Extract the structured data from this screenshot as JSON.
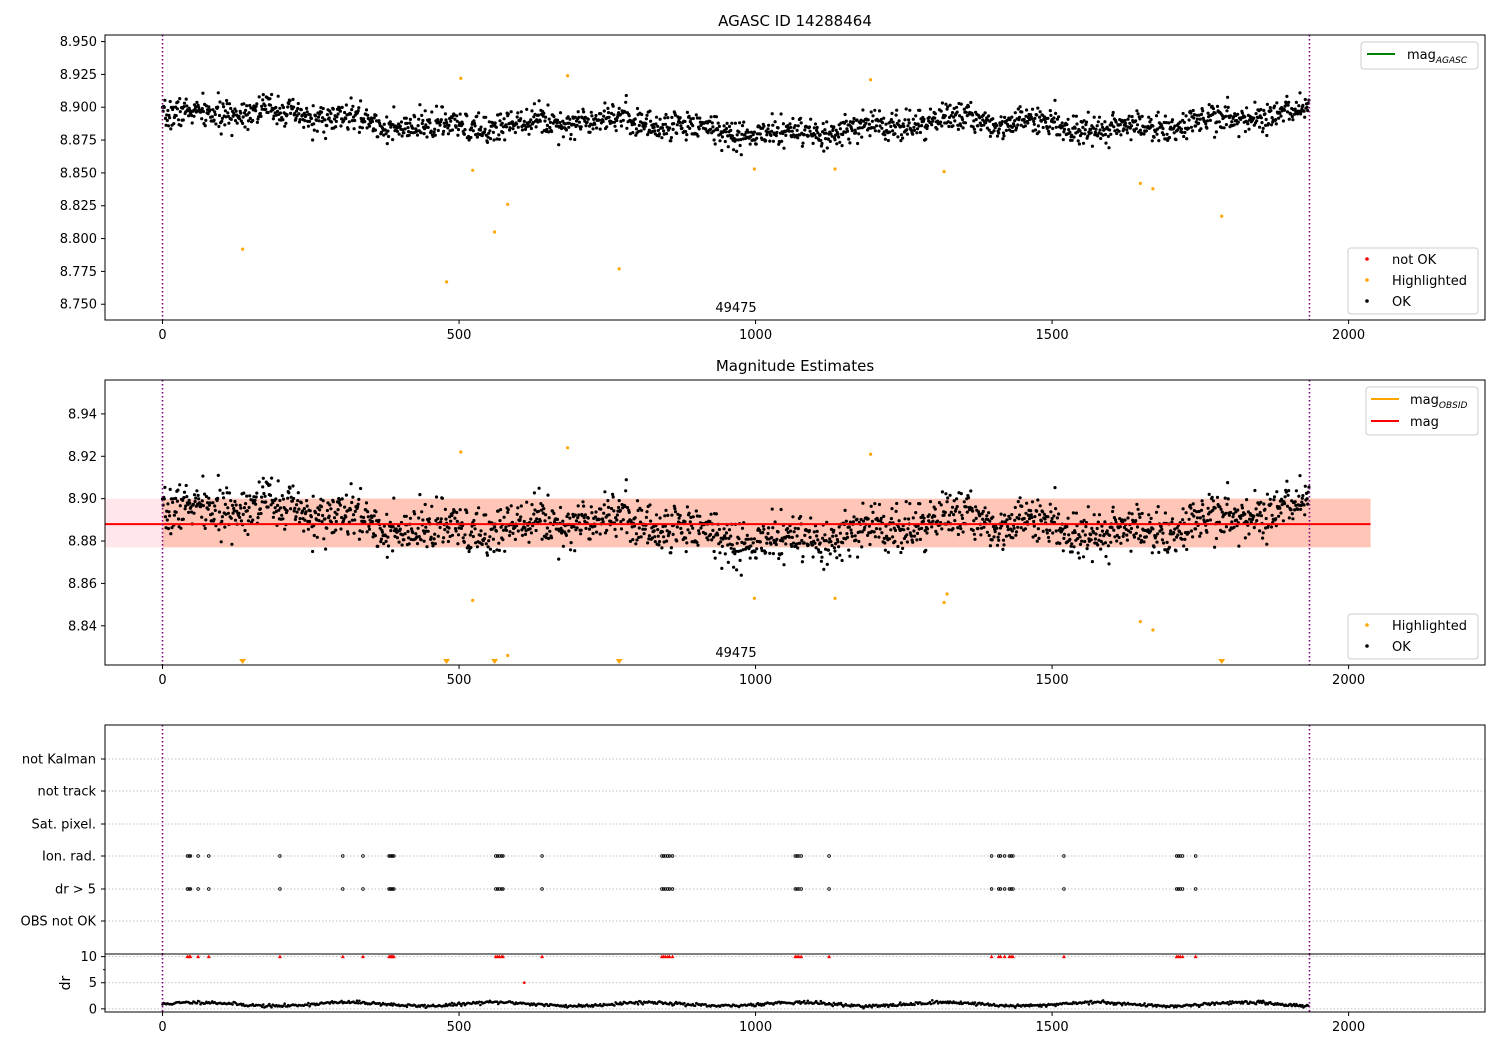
{
  "figure": {
    "panel1_title": "AGASC ID 14288464",
    "panel2_title": "Magnitude Estimates",
    "obsid_label": "49475",
    "dr_ylabel": "dr"
  },
  "colors": {
    "ok": "#000000",
    "not_ok": "#ff0000",
    "highlighted": "#ffa500",
    "mag_agasc": "#008000",
    "mag_obsid": "#ffa500",
    "mag": "#ff0000",
    "band_outer": "#ffc0cb",
    "band_inner": "#ffa07a",
    "obsid_boundary": "#800080",
    "grid": "#b0b0b0"
  },
  "chart_data": [
    {
      "id": "agasc",
      "type": "scatter",
      "title": "AGASC ID 14288464",
      "xlim": [
        -97,
        2230
      ],
      "ylim": [
        8.738,
        8.955
      ],
      "xticks": [
        0,
        500,
        1000,
        1500,
        2000
      ],
      "yticks": [
        8.75,
        8.775,
        8.8,
        8.825,
        8.85,
        8.875,
        8.9,
        8.925,
        8.95
      ],
      "ytick_decimals": 3,
      "obsid_boundaries": [
        0,
        1934
      ],
      "obsid_annotation": {
        "x": 967,
        "text": "49475"
      },
      "ok_points": {
        "n": 1934,
        "mean": 8.888,
        "scatter": 0.0085,
        "seed": 7
      },
      "highlighted_points": [
        [
          135,
          8.792
        ],
        [
          479,
          8.767
        ],
        [
          503,
          8.922
        ],
        [
          523,
          8.852
        ],
        [
          560,
          8.805
        ],
        [
          582,
          8.826
        ],
        [
          683,
          8.924
        ],
        [
          770,
          8.777
        ],
        [
          998,
          8.853
        ],
        [
          1134,
          8.853
        ],
        [
          1194,
          8.921
        ],
        [
          1318,
          8.851
        ],
        [
          1649,
          8.842
        ],
        [
          1670,
          8.838
        ],
        [
          1786,
          8.817
        ]
      ],
      "legend_lines": [
        {
          "label": "mag",
          "sub": "AGASC",
          "color": "#008000"
        }
      ],
      "legend_markers": [
        {
          "label": "not OK",
          "color": "#ff0000"
        },
        {
          "label": "Highlighted",
          "color": "#ffa500"
        },
        {
          "label": "OK",
          "color": "#000000"
        }
      ]
    },
    {
      "id": "estimates",
      "type": "scatter",
      "title": "Magnitude Estimates",
      "xlim": [
        -97,
        2230
      ],
      "ylim": [
        8.8215,
        8.956
      ],
      "xticks": [
        0,
        500,
        1000,
        1500,
        2000
      ],
      "yticks": [
        8.84,
        8.86,
        8.88,
        8.9,
        8.92,
        8.94
      ],
      "ytick_decimals": 2,
      "obsid_boundaries": [
        0,
        1934
      ],
      "obsid_annotation": {
        "x": 967,
        "text": "49475"
      },
      "mag_line": {
        "x": [
          -97,
          2037
        ],
        "y": 8.888
      },
      "band_outer": {
        "x": [
          -97,
          2037
        ],
        "y": [
          8.877,
          8.9
        ]
      },
      "band_inner": {
        "x": [
          0,
          2037
        ],
        "y": [
          8.877,
          8.9
        ]
      },
      "highlighted_points": [
        [
          503,
          8.922
        ],
        [
          523,
          8.852
        ],
        [
          582,
          8.826
        ],
        [
          683,
          8.924
        ],
        [
          998,
          8.853
        ],
        [
          1134,
          8.853
        ],
        [
          1194,
          8.921
        ],
        [
          1318,
          8.851
        ],
        [
          1323,
          8.855
        ],
        [
          1649,
          8.842
        ],
        [
          1670,
          8.838
        ]
      ],
      "off_axis_markers_x": [
        135,
        479,
        560,
        770,
        1786
      ],
      "legend_lines": [
        {
          "label": "mag",
          "sub": "OBSID",
          "color": "#ffa500"
        },
        {
          "label": "mag",
          "sub": "",
          "color": "#ff0000"
        }
      ],
      "legend_markers": [
        {
          "label": "Highlighted",
          "color": "#ffa500"
        },
        {
          "label": "OK",
          "color": "#000000"
        }
      ]
    },
    {
      "id": "flags",
      "type": "scatter",
      "categories": [
        "not Kalman",
        "not track",
        "Sat. pixel.",
        "Ion. rad.",
        "dr > 5",
        "OBS not OK"
      ],
      "xlim": [
        -97,
        2230
      ],
      "obsid_boundaries": [
        0,
        1934
      ],
      "flag_x": [
        42,
        45,
        47,
        60,
        78,
        198,
        304,
        338,
        382,
        384,
        386,
        388,
        390,
        562,
        565,
        568,
        572,
        574,
        640,
        842,
        845,
        848,
        852,
        855,
        860,
        1067,
        1070,
        1073,
        1077,
        1124,
        1398,
        1410,
        1413,
        1420,
        1428,
        1431,
        1434,
        1520,
        1710,
        1713,
        1716,
        1720,
        1742
      ],
      "flag_rows": [
        "Ion. rad.",
        "dr > 5"
      ]
    },
    {
      "id": "dr",
      "type": "scatter",
      "ylabel": "dr",
      "xlim": [
        -97,
        2230
      ],
      "ylim": [
        -0.6,
        10.5
      ],
      "xticks": [
        0,
        500,
        1000,
        1500,
        2000
      ],
      "yticks": [
        0,
        5,
        10
      ],
      "obsid_boundaries": [
        0,
        1934
      ],
      "dr_points": {
        "n": 1934,
        "mean": 0.9,
        "scatter": 0.3,
        "seed": 11
      },
      "capped_markers": {
        "y": 10,
        "x": [
          42,
          45,
          47,
          60,
          78,
          198,
          304,
          338,
          382,
          384,
          386,
          388,
          390,
          562,
          565,
          568,
          572,
          574,
          640,
          842,
          845,
          848,
          852,
          855,
          860,
          1067,
          1070,
          1073,
          1077,
          1124,
          1398,
          1410,
          1413,
          1420,
          1428,
          1431,
          1434,
          1520,
          1710,
          1713,
          1716,
          1720,
          1742
        ]
      },
      "outlier_points": [
        [
          610,
          5
        ]
      ]
    }
  ]
}
